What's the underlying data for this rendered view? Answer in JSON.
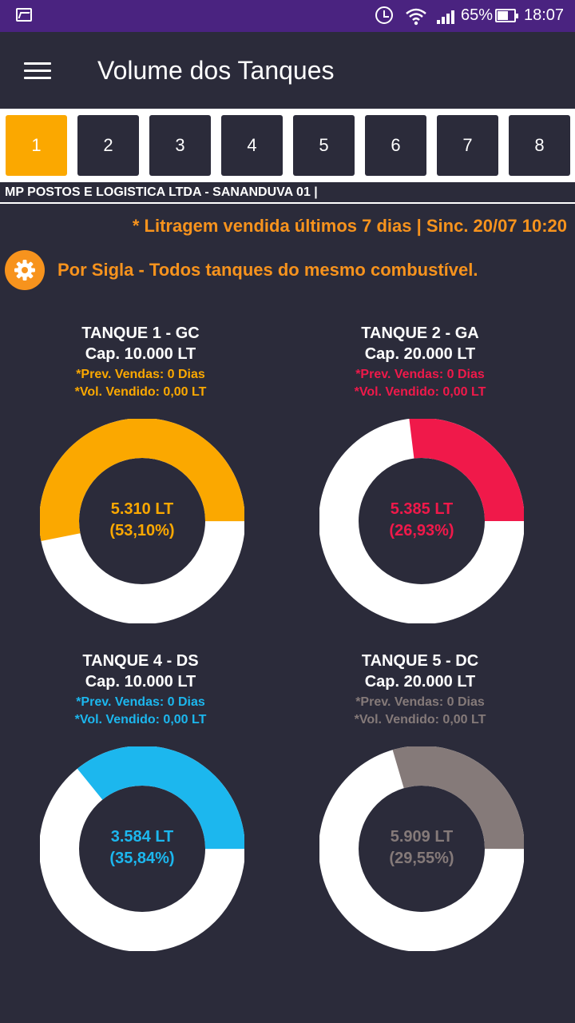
{
  "status_bar": {
    "battery": "65%",
    "time": "18:07",
    "icons": [
      "gallery-icon",
      "alarm-icon",
      "wifi-icon",
      "signal-icon",
      "battery-icon"
    ]
  },
  "app_bar": {
    "title": "Volume dos Tanques",
    "menu_icon": "hamburger-menu-icon"
  },
  "tabs": [
    {
      "label": "1",
      "active": true
    },
    {
      "label": "2",
      "active": false
    },
    {
      "label": "3",
      "active": false
    },
    {
      "label": "4",
      "active": false
    },
    {
      "label": "5",
      "active": false
    },
    {
      "label": "6",
      "active": false
    },
    {
      "label": "7",
      "active": false
    },
    {
      "label": "8",
      "active": false
    }
  ],
  "company": "MP POSTOS E LOGISTICA LTDA - SANANDUVA 01 |",
  "info_line": "* Litragem vendida últimos 7 dias | Sinc. 20/07 10:20",
  "filter": {
    "text": "Por Sigla - Todos tanques do mesmo combustível.",
    "icon": "gear-icon"
  },
  "colors": {
    "background": "#2b2b3a",
    "status_bar": "#4a2380",
    "accent": "#f7931d",
    "active_tab": "#fba800",
    "donut_empty": "#ffffff"
  },
  "tanks": [
    {
      "title": "TANQUE 1 - GC",
      "capacity": "Cap. 10.000 LT",
      "prev_vendas": "*Prev. Vendas: 0 Dias",
      "vol_vendido": "*Vol. Vendido: 0,00 LT",
      "volume": "5.310 LT",
      "percent_label": "(53,10%)",
      "fill_fraction": 0.531,
      "color": "#fba800"
    },
    {
      "title": "TANQUE 2 - GA",
      "capacity": "Cap. 20.000 LT",
      "prev_vendas": "*Prev. Vendas: 0 Dias",
      "vol_vendido": "*Vol. Vendido: 0,00 LT",
      "volume": "5.385 LT",
      "percent_label": "(26,93%)",
      "fill_fraction": 0.2693,
      "color": "#f0194a"
    },
    {
      "title": "TANQUE 4 - DS",
      "capacity": "Cap. 10.000 LT",
      "prev_vendas": "*Prev. Vendas: 0 Dias",
      "vol_vendido": "*Vol. Vendido: 0,00 LT",
      "volume": "3.584 LT",
      "percent_label": "(35,84%)",
      "fill_fraction": 0.3584,
      "color": "#1cb7ee"
    },
    {
      "title": "TANQUE 5 - DC",
      "capacity": "Cap. 20.000 LT",
      "prev_vendas": "*Prev. Vendas: 0 Dias",
      "vol_vendido": "*Vol. Vendido: 0,00 LT",
      "volume": "5.909 LT",
      "percent_label": "(29,55%)",
      "fill_fraction": 0.2955,
      "color": "#857a79"
    }
  ]
}
